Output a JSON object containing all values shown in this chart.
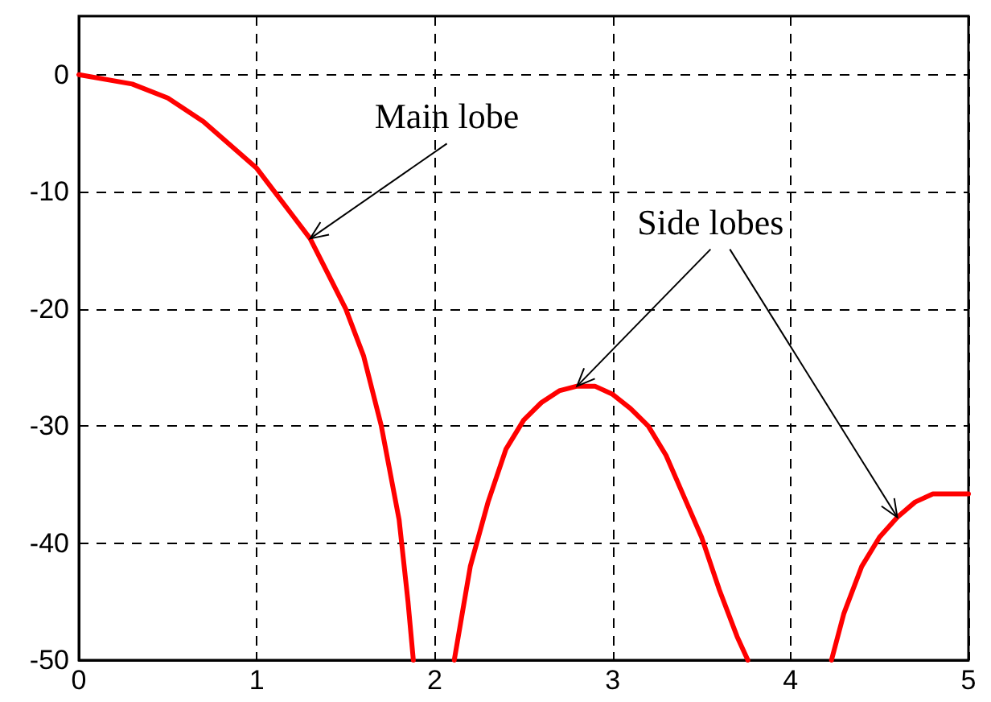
{
  "chart_data": {
    "type": "line",
    "x": [
      0,
      0.3,
      0.5,
      0.7,
      1.0,
      1.2,
      1.3,
      1.5,
      1.6,
      1.7,
      1.8,
      1.85,
      1.88,
      2.0,
      2.11,
      2.2,
      2.3,
      2.4,
      2.5,
      2.6,
      2.7,
      2.8,
      2.9,
      3.0,
      3.1,
      3.2,
      3.3,
      3.4,
      3.5,
      3.6,
      3.7,
      3.76,
      4.0,
      4.23,
      4.3,
      4.4,
      4.5,
      4.6,
      4.7,
      4.8,
      4.9,
      5.0
    ],
    "series": [
      {
        "color": "#ff0000",
        "values": [
          0,
          -0.8,
          -2,
          -4,
          -8,
          -12,
          -14,
          -20,
          -24,
          -30,
          -38,
          -45,
          -50,
          null,
          -50,
          -42,
          -36.5,
          -32,
          -29.5,
          -28,
          -27,
          -26.6,
          -26.6,
          -27.3,
          -28.5,
          -30,
          -32.5,
          -36,
          -39.5,
          -44,
          -48,
          -50,
          null,
          -50,
          -46,
          -42,
          -39.5,
          -37.8,
          -36.5,
          -35.8,
          -35.8,
          -35.8
        ]
      }
    ],
    "xlim": [
      0,
      5
    ],
    "xticks": [
      0,
      1,
      2,
      3,
      4,
      5
    ],
    "ylim": [
      -50,
      5
    ],
    "yticks": [
      -50,
      -40,
      -30,
      -20,
      -10,
      0
    ],
    "grid": true,
    "line_style": "solid",
    "marker": "none",
    "annotations": [
      {
        "text": "Main lobe",
        "x": 1.3,
        "y": -14
      },
      {
        "text": "Side lobes",
        "x": 2.8,
        "y": -26.6
      }
    ]
  }
}
